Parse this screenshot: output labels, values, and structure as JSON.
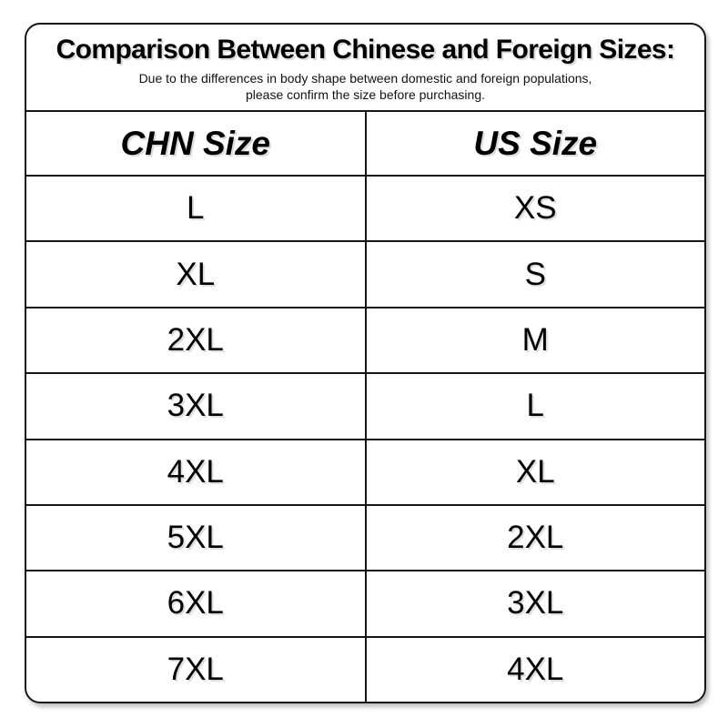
{
  "card": {
    "title": "Comparison Between Chinese and Foreign Sizes:",
    "subtitle_line1": "Due to the differences in body shape between domestic and foreign populations,",
    "subtitle_line2": "please confirm the size before purchasing."
  },
  "chart_data": {
    "type": "table",
    "title": "Comparison Between Chinese and Foreign Sizes:",
    "columns": [
      "CHN Size",
      "US Size"
    ],
    "rows": [
      [
        "L",
        "XS"
      ],
      [
        "XL",
        "S"
      ],
      [
        "2XL",
        "M"
      ],
      [
        "3XL",
        "L"
      ],
      [
        "4XL",
        "XL"
      ],
      [
        "5XL",
        "2XL"
      ],
      [
        "6XL",
        "3XL"
      ],
      [
        "7XL",
        "4XL"
      ]
    ]
  },
  "colors": {
    "background": "#ffffff",
    "border": "#161616",
    "text": "#000000"
  }
}
